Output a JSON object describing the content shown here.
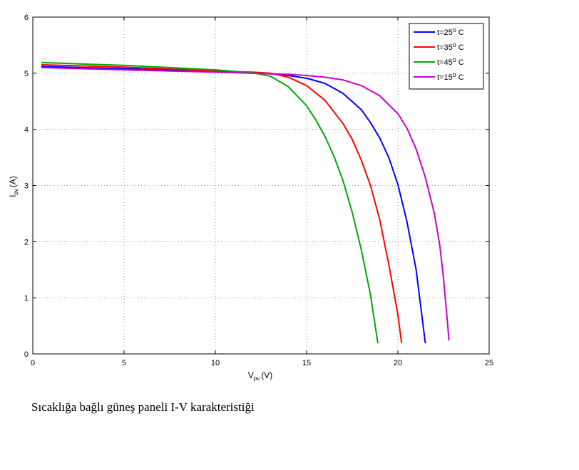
{
  "caption": "Sıcaklığa bağlı güneş paneli I-V karakteristiği",
  "chart_data": {
    "type": "line",
    "xlabel": {
      "main": "V",
      "sub": "pv",
      "unit": "(V)"
    },
    "ylabel": {
      "main": "I",
      "sub": "pv",
      "unit": "(A)"
    },
    "xlim": [
      0,
      25
    ],
    "ylim": [
      0,
      6
    ],
    "xticks": [
      0,
      5,
      10,
      15,
      20,
      25
    ],
    "yticks": [
      0,
      1,
      2,
      3,
      4,
      5,
      6
    ],
    "grid": true,
    "legend_position": "top-right",
    "series": [
      {
        "name": {
          "prefix": "t=25",
          "sup": "o",
          "suffix": " C"
        },
        "color": "#0000ff",
        "points": [
          [
            0.5,
            5.12
          ],
          [
            5,
            5.08
          ],
          [
            10,
            5.03
          ],
          [
            12,
            5.01
          ],
          [
            13,
            4.99
          ],
          [
            14,
            4.96
          ],
          [
            15,
            4.91
          ],
          [
            16,
            4.82
          ],
          [
            17,
            4.64
          ],
          [
            18,
            4.35
          ],
          [
            18.5,
            4.12
          ],
          [
            19,
            3.85
          ],
          [
            19.5,
            3.5
          ],
          [
            20,
            3.02
          ],
          [
            20.5,
            2.35
          ],
          [
            21,
            1.5
          ],
          [
            21.5,
            0.2
          ]
        ]
      },
      {
        "name": {
          "prefix": "t=35",
          "sup": "o",
          "suffix": " C"
        },
        "color": "#ff0000",
        "points": [
          [
            0.5,
            5.15
          ],
          [
            5,
            5.11
          ],
          [
            10,
            5.04
          ],
          [
            12,
            5.02
          ],
          [
            13,
            5.0
          ],
          [
            14,
            4.93
          ],
          [
            15,
            4.78
          ],
          [
            16,
            4.52
          ],
          [
            17,
            4.1
          ],
          [
            17.5,
            3.82
          ],
          [
            18,
            3.45
          ],
          [
            18.5,
            3.0
          ],
          [
            19,
            2.4
          ],
          [
            19.5,
            1.6
          ],
          [
            20,
            0.7
          ],
          [
            20.2,
            0.2
          ]
        ]
      },
      {
        "name": {
          "prefix": "t=45",
          "sup": "o",
          "suffix": " C"
        },
        "color": "#00aa00",
        "points": [
          [
            0.5,
            5.19
          ],
          [
            5,
            5.14
          ],
          [
            10,
            5.06
          ],
          [
            12,
            5.01
          ],
          [
            13,
            4.95
          ],
          [
            14,
            4.76
          ],
          [
            15,
            4.42
          ],
          [
            15.5,
            4.17
          ],
          [
            16,
            3.88
          ],
          [
            16.5,
            3.52
          ],
          [
            17,
            3.08
          ],
          [
            17.5,
            2.52
          ],
          [
            18,
            1.85
          ],
          [
            18.5,
            1.05
          ],
          [
            18.9,
            0.2
          ]
        ]
      },
      {
        "name": {
          "prefix": "t=15",
          "sup": "o",
          "suffix": " C"
        },
        "color": "#cc00cc",
        "points": [
          [
            0.5,
            5.1
          ],
          [
            5,
            5.06
          ],
          [
            10,
            5.02
          ],
          [
            14,
            4.98
          ],
          [
            15,
            4.96
          ],
          [
            16,
            4.93
          ],
          [
            17,
            4.88
          ],
          [
            18,
            4.78
          ],
          [
            19,
            4.6
          ],
          [
            20,
            4.28
          ],
          [
            20.5,
            4.02
          ],
          [
            21,
            3.65
          ],
          [
            21.5,
            3.15
          ],
          [
            22,
            2.5
          ],
          [
            22.3,
            1.92
          ],
          [
            22.5,
            1.35
          ],
          [
            22.8,
            0.25
          ]
        ]
      }
    ]
  }
}
